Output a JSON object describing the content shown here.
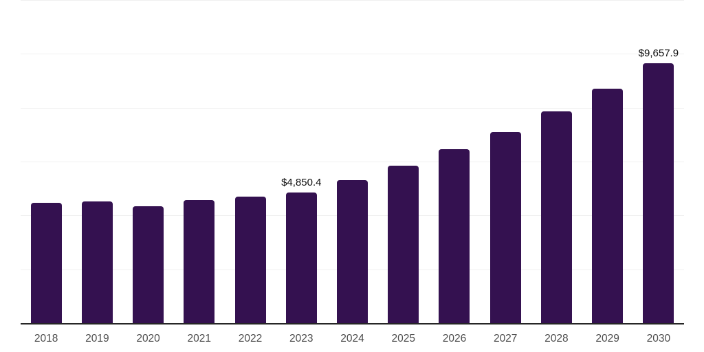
{
  "chart_data": {
    "type": "bar",
    "title": "",
    "xlabel": "",
    "ylabel": "",
    "categories": [
      "2018",
      "2019",
      "2020",
      "2021",
      "2022",
      "2023",
      "2024",
      "2025",
      "2026",
      "2027",
      "2028",
      "2029",
      "2030"
    ],
    "values": [
      4460,
      4520,
      4350,
      4560,
      4690,
      4850.4,
      5305,
      5840,
      6455,
      7105,
      7860,
      8700,
      9657.9
    ],
    "value_labels": [
      "",
      "",
      "",
      "",
      "",
      "$4,850.4",
      "",
      "",
      "",
      "",
      "",
      "",
      "$9,657.9"
    ],
    "ylim": [
      0,
      12000
    ],
    "grid_step": 2000,
    "grid": true,
    "legend": false,
    "y_tick_labels_visible": false,
    "colors": {
      "bar": "#341150",
      "grid": "#f0f0f0",
      "axis": "#262626",
      "tick_label": "#4d4d4d",
      "value_label": "#0d0d0d",
      "background": "#ffffff"
    }
  }
}
